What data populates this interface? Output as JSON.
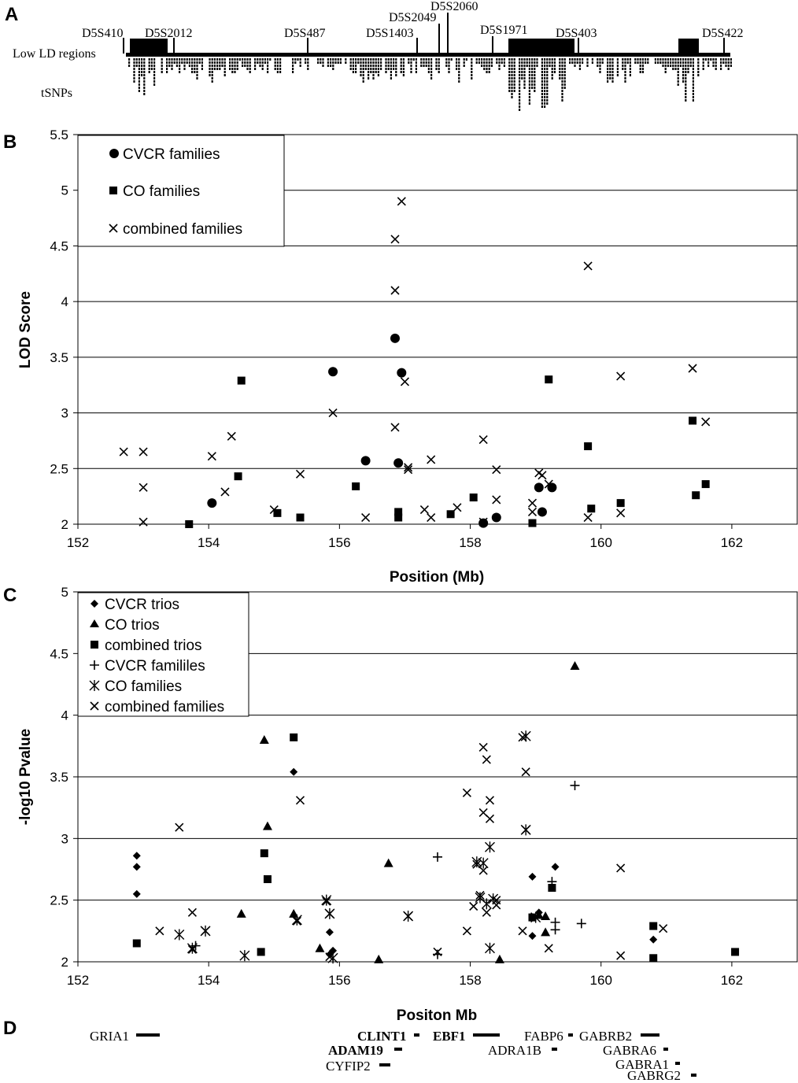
{
  "panel_a": {
    "letter": "A",
    "row_labels": [
      "Low LD regions",
      "tSNPs"
    ],
    "markers": [
      {
        "name": "D5S410"
      },
      {
        "name": "D5S2012"
      },
      {
        "name": "D5S487"
      },
      {
        "name": "D5S1403"
      },
      {
        "name": "D5S2049"
      },
      {
        "name": "D5S2060"
      },
      {
        "name": "D5S1971"
      },
      {
        "name": "D5S403"
      },
      {
        "name": "D5S422"
      }
    ]
  },
  "panel_d": {
    "letter": "D",
    "genes": [
      {
        "name": "GRIA1",
        "bold": false
      },
      {
        "name": "CLINT1",
        "bold": true
      },
      {
        "name": "EBF1",
        "bold": true
      },
      {
        "name": "FABP6",
        "bold": false
      },
      {
        "name": "GABRB2",
        "bold": false
      },
      {
        "name": "ADAM19",
        "bold": true
      },
      {
        "name": "ADRA1B",
        "bold": false
      },
      {
        "name": "GABRA6",
        "bold": false
      },
      {
        "name": "CYFIP2",
        "bold": false
      },
      {
        "name": "GABRA1",
        "bold": false
      },
      {
        "name": "GABRG2",
        "bold": false
      }
    ]
  },
  "chart_data": [
    {
      "panel": "B",
      "type": "scatter",
      "xlabel": "Position (Mb)",
      "ylabel": "LOD Score",
      "xlim": [
        152,
        163
      ],
      "ylim": [
        2,
        5.5
      ],
      "x_ticks": [
        "152",
        "154",
        "156",
        "158",
        "160",
        "162"
      ],
      "y_ticks": [
        "2",
        "2.5",
        "3",
        "3.5",
        "4",
        "4.5",
        "5",
        "5.5"
      ],
      "grid": "horizontal",
      "legend_position": "top-left",
      "series": [
        {
          "name": "CVCR families",
          "marker": "circle",
          "points": [
            [
              154.05,
              2.19
            ],
            [
              155.9,
              3.37
            ],
            [
              156.4,
              2.57
            ],
            [
              156.85,
              3.67
            ],
            [
              156.9,
              2.55
            ],
            [
              156.95,
              3.36
            ],
            [
              158.2,
              2.01
            ],
            [
              158.4,
              2.06
            ],
            [
              159.05,
              2.33
            ],
            [
              159.1,
              2.11
            ],
            [
              159.25,
              2.33
            ]
          ]
        },
        {
          "name": "CO families",
          "marker": "square",
          "points": [
            [
              153.7,
              2.0
            ],
            [
              154.45,
              2.43
            ],
            [
              154.5,
              3.29
            ],
            [
              155.05,
              2.1
            ],
            [
              155.4,
              2.06
            ],
            [
              156.25,
              2.34
            ],
            [
              156.9,
              2.06
            ],
            [
              156.9,
              2.11
            ],
            [
              157.7,
              2.09
            ],
            [
              158.05,
              2.24
            ],
            [
              158.95,
              2.01
            ],
            [
              159.2,
              3.3
            ],
            [
              159.8,
              2.7
            ],
            [
              159.85,
              2.14
            ],
            [
              160.3,
              2.19
            ],
            [
              161.4,
              2.93
            ],
            [
              161.45,
              2.26
            ],
            [
              161.6,
              2.36
            ]
          ]
        },
        {
          "name": "combined families",
          "marker": "x",
          "points": [
            [
              152.7,
              2.65
            ],
            [
              153.0,
              2.65
            ],
            [
              153.0,
              2.33
            ],
            [
              153.0,
              2.02
            ],
            [
              154.05,
              2.61
            ],
            [
              154.25,
              2.29
            ],
            [
              154.35,
              2.79
            ],
            [
              155.0,
              2.13
            ],
            [
              155.4,
              2.45
            ],
            [
              155.9,
              3.0
            ],
            [
              156.4,
              2.06
            ],
            [
              156.85,
              4.56
            ],
            [
              156.85,
              4.1
            ],
            [
              156.85,
              2.87
            ],
            [
              156.95,
              4.9
            ],
            [
              157.0,
              3.28
            ],
            [
              157.05,
              2.51
            ],
            [
              157.05,
              2.49
            ],
            [
              157.3,
              2.13
            ],
            [
              157.4,
              2.06
            ],
            [
              157.4,
              2.58
            ],
            [
              157.8,
              2.15
            ],
            [
              158.2,
              2.76
            ],
            [
              158.2,
              2.02
            ],
            [
              158.4,
              2.49
            ],
            [
              158.4,
              2.22
            ],
            [
              158.95,
              2.19
            ],
            [
              158.95,
              2.11
            ],
            [
              159.05,
              2.46
            ],
            [
              159.1,
              2.44
            ],
            [
              159.2,
              2.36
            ],
            [
              159.8,
              4.32
            ],
            [
              159.8,
              2.06
            ],
            [
              160.3,
              3.33
            ],
            [
              160.3,
              2.1
            ],
            [
              161.4,
              3.4
            ],
            [
              161.6,
              2.92
            ]
          ]
        }
      ]
    },
    {
      "panel": "C",
      "type": "scatter",
      "xlabel": "Positon Mb",
      "ylabel": "-log10 Pvalue",
      "xlim": [
        152,
        163
      ],
      "ylim": [
        2,
        5
      ],
      "x_ticks": [
        "152",
        "154",
        "156",
        "158",
        "160",
        "162"
      ],
      "y_ticks": [
        "2",
        "2.5",
        "3",
        "3.5",
        "4",
        "4.5",
        "5"
      ],
      "grid": "horizontal",
      "legend_position": "top-left",
      "series": [
        {
          "name": "CVCR trios",
          "marker": "diamond",
          "points": [
            [
              152.9,
              2.86
            ],
            [
              152.9,
              2.77
            ],
            [
              152.9,
              2.55
            ],
            [
              155.3,
              3.54
            ],
            [
              155.85,
              2.24
            ],
            [
              155.9,
              2.09
            ],
            [
              155.85,
              2.06
            ],
            [
              158.95,
              2.69
            ],
            [
              158.95,
              2.21
            ],
            [
              159.05,
              2.4
            ],
            [
              159.3,
              2.77
            ],
            [
              160.8,
              2.18
            ]
          ]
        },
        {
          "name": "CO trios",
          "marker": "triangle",
          "points": [
            [
              154.5,
              2.39
            ],
            [
              154.85,
              3.8
            ],
            [
              154.9,
              3.1
            ],
            [
              155.3,
              2.39
            ],
            [
              155.7,
              2.11
            ],
            [
              156.6,
              2.02
            ],
            [
              156.75,
              2.8
            ],
            [
              158.45,
              2.02
            ],
            [
              159.05,
              2.38
            ],
            [
              159.15,
              2.37
            ],
            [
              159.15,
              2.24
            ],
            [
              159.6,
              4.4
            ]
          ]
        },
        {
          "name": "combined trios",
          "marker": "square",
          "points": [
            [
              152.9,
              2.15
            ],
            [
              154.8,
              2.08
            ],
            [
              154.85,
              2.88
            ],
            [
              154.9,
              2.67
            ],
            [
              155.3,
              3.82
            ],
            [
              158.95,
              2.36
            ],
            [
              159.25,
              2.6
            ],
            [
              160.8,
              2.29
            ],
            [
              160.8,
              2.03
            ],
            [
              162.05,
              2.08
            ]
          ]
        },
        {
          "name": "CVCR famililes",
          "marker": "plus",
          "points": [
            [
              153.8,
              2.13
            ],
            [
              157.5,
              2.85
            ],
            [
              157.5,
              2.06
            ],
            [
              159.25,
              2.65
            ],
            [
              159.3,
              2.32
            ],
            [
              159.3,
              2.26
            ],
            [
              159.6,
              3.43
            ],
            [
              159.7,
              2.31
            ]
          ]
        },
        {
          "name": "CO families",
          "marker": "asterisk",
          "points": [
            [
              153.55,
              2.22
            ],
            [
              153.75,
              2.11
            ],
            [
              153.95,
              2.25
            ],
            [
              154.55,
              2.05
            ],
            [
              155.35,
              2.34
            ],
            [
              155.8,
              2.5
            ],
            [
              155.85,
              2.39
            ],
            [
              155.9,
              2.03
            ],
            [
              157.05,
              2.37
            ],
            [
              158.1,
              2.81
            ],
            [
              158.2,
              2.8
            ],
            [
              158.15,
              2.52
            ],
            [
              158.25,
              2.47
            ],
            [
              158.3,
              2.93
            ],
            [
              158.35,
              2.51
            ],
            [
              158.3,
              2.11
            ],
            [
              158.85,
              3.83
            ],
            [
              158.85,
              3.07
            ],
            [
              159.0,
              2.36
            ]
          ]
        },
        {
          "name": "combined families",
          "marker": "x",
          "points": [
            [
              153.25,
              2.25
            ],
            [
              153.55,
              3.09
            ],
            [
              153.75,
              2.4
            ],
            [
              153.75,
              2.1
            ],
            [
              153.95,
              2.25
            ],
            [
              155.35,
              2.33
            ],
            [
              155.4,
              3.31
            ],
            [
              155.8,
              2.49
            ],
            [
              155.85,
              2.39
            ],
            [
              155.85,
              2.04
            ],
            [
              157.05,
              2.37
            ],
            [
              157.5,
              2.08
            ],
            [
              157.95,
              3.37
            ],
            [
              157.95,
              2.25
            ],
            [
              158.05,
              2.45
            ],
            [
              158.1,
              2.79
            ],
            [
              158.15,
              2.54
            ],
            [
              158.2,
              3.74
            ],
            [
              158.2,
              3.21
            ],
            [
              158.25,
              3.64
            ],
            [
              158.2,
              2.74
            ],
            [
              158.25,
              2.4
            ],
            [
              158.3,
              3.31
            ],
            [
              158.3,
              3.16
            ],
            [
              158.4,
              2.46
            ],
            [
              158.4,
              2.5
            ],
            [
              158.8,
              3.82
            ],
            [
              158.8,
              2.25
            ],
            [
              158.85,
              3.54
            ],
            [
              158.85,
              3.07
            ],
            [
              159.2,
              2.11
            ],
            [
              160.3,
              2.76
            ],
            [
              160.3,
              2.05
            ],
            [
              160.95,
              2.27
            ]
          ]
        }
      ]
    }
  ]
}
